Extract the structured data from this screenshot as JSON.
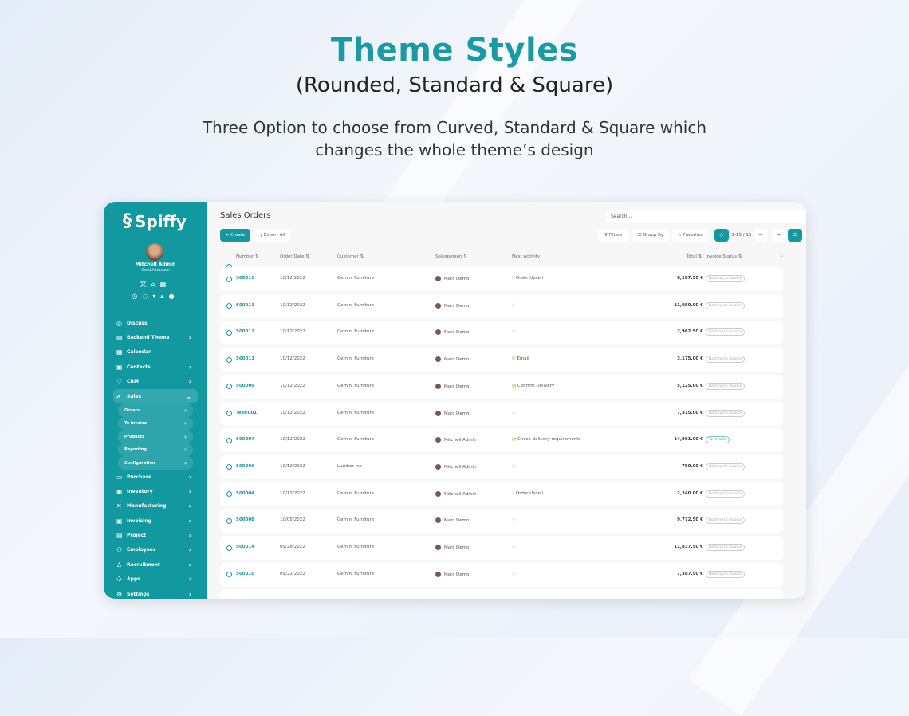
{
  "hero": {
    "title": "Theme Styles",
    "subtitle": "(Rounded, Standard & Square)",
    "description_line1": "Three Option to choose from Curved, Standard & Square which",
    "description_line2": "changes the whole theme’s design"
  },
  "colors": {
    "accent": "#11999f",
    "title": "#1a9ba3"
  },
  "sidebar": {
    "logo": "Spiffy",
    "user": "Mitchell Admin",
    "greeting": "Good Afternoon",
    "items": [
      {
        "label": "Discuss",
        "icon": "chat-icon"
      },
      {
        "label": "Backend Theme",
        "icon": "paint-icon"
      },
      {
        "label": "Calendar",
        "icon": "calendar-icon"
      },
      {
        "label": "Contacts",
        "icon": "contacts-icon"
      },
      {
        "label": "CRM",
        "icon": "handshake-icon"
      },
      {
        "label": "Sales",
        "icon": "chart-icon"
      }
    ],
    "sales_sub": [
      "Orders",
      "To Invoice",
      "Products",
      "Reporting",
      "Configuration"
    ],
    "items2": [
      {
        "label": "Purchase",
        "icon": "card-icon"
      },
      {
        "label": "Inventory",
        "icon": "box-icon"
      },
      {
        "label": "Manufacturing",
        "icon": "tools-icon"
      },
      {
        "label": "Invoicing",
        "icon": "invoice-icon"
      },
      {
        "label": "Project",
        "icon": "project-icon"
      },
      {
        "label": "Employees",
        "icon": "people-icon"
      },
      {
        "label": "Recruitment",
        "icon": "user-add-icon"
      },
      {
        "label": "Apps",
        "icon": "grid-icon"
      },
      {
        "label": "Settings",
        "icon": "gear-icon"
      }
    ]
  },
  "main": {
    "title": "Sales Orders",
    "search_placeholder": "Search...",
    "create": "+ Create",
    "export": "Export All",
    "filters": "Filters",
    "group_by": "Group By",
    "favorites": "Favorites",
    "pager": "1-15 / 15",
    "columns": [
      "Number",
      "Order Date",
      "Customer",
      "Salesperson",
      "Next Activity",
      "Total",
      "Invoice Status"
    ],
    "rows": [
      [
        "S00015",
        "10/12/2022",
        "Gemini Furniture",
        "Marc Demo",
        "Order Upsell",
        "8,287.50 €",
        "Nothing to invoice"
      ],
      [
        "S00013",
        "10/12/2022",
        "Gemini Furniture",
        "Marc Demo",
        "",
        "11,050.00 €",
        "Nothing to invoice"
      ],
      [
        "S00012",
        "10/12/2022",
        "Gemini Furniture",
        "Marc Demo",
        "",
        "2,962.50 €",
        "Nothing to invoice"
      ],
      [
        "S00011",
        "10/12/2022",
        "Gemini Furniture",
        "Marc Demo",
        "Email",
        "3,175.00 €",
        "Nothing to invoice"
      ],
      [
        "S00009",
        "10/12/2022",
        "Gemini Furniture",
        "Marc Demo",
        "Confirm Delivery",
        "5,125.00 €",
        "Nothing to invoice"
      ],
      [
        "Test/001",
        "10/12/2022",
        "Gemini Furniture",
        "Marc Demo",
        "",
        "7,315.00 €",
        "Nothing to invoice"
      ],
      [
        "S00007",
        "10/12/2022",
        "Gemini Furniture",
        "Mitchell Admin",
        "Check delivery requirements",
        "14,981.00 €",
        "To invoice"
      ],
      [
        "S00006",
        "10/12/2022",
        "Lumber Inc",
        "Mitchell Admin",
        "",
        "750.00 €",
        "Nothing to invoice"
      ],
      [
        "S00004",
        "10/12/2022",
        "Gemini Furniture",
        "Mitchell Admin",
        "Order Upsell",
        "2,240.00 €",
        "Nothing to invoice"
      ],
      [
        "S00008",
        "10/05/2022",
        "Gemini Furniture",
        "Marc Demo",
        "",
        "9,772.50 €",
        "Nothing to invoice"
      ],
      [
        "S00014",
        "09/28/2022",
        "Gemini Furniture",
        "Marc Demo",
        "",
        "11,837.50 €",
        "Nothing to invoice"
      ],
      [
        "S00010",
        "09/21/2022",
        "Gemini Furniture",
        "Marc Demo",
        "",
        "7,387.50 €",
        "Nothing to invoice"
      ]
    ]
  }
}
